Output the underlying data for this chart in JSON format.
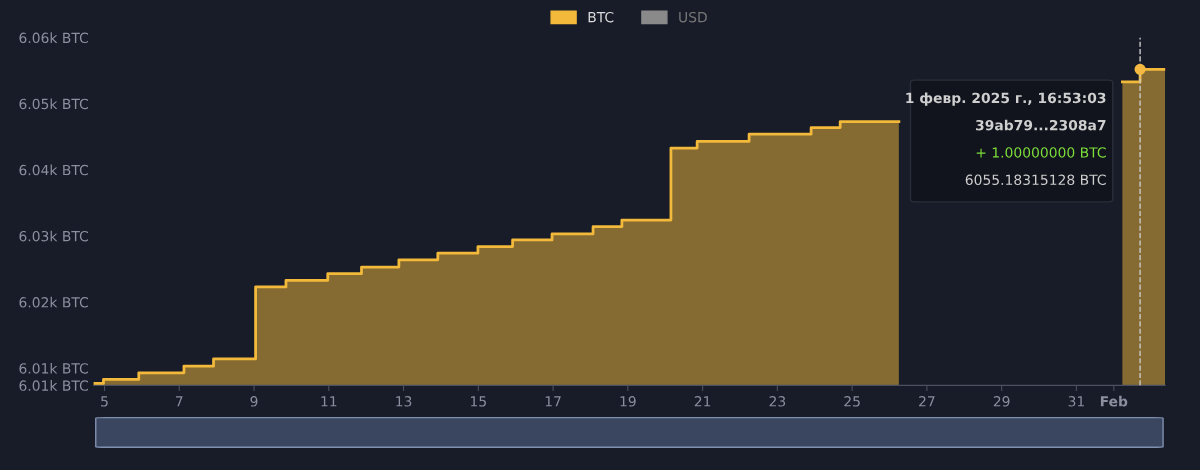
{
  "chart_data": {
    "type": "area",
    "legend": "top",
    "grid": false,
    "line_style": "solid",
    "marker": "none",
    "x": [
      "2025-01-04T17:00",
      "2025-01-04T23:20",
      "2025-01-04T23:20",
      "2025-01-05T22:00",
      "2025-01-05T22:00",
      "2025-01-07T03:00",
      "2025-01-07T03:00",
      "2025-01-07T22:00",
      "2025-01-07T22:00",
      "2025-01-09T01:00",
      "2025-01-09T01:00",
      "2025-01-09T20:30",
      "2025-01-09T20:30",
      "2025-01-10T23:20",
      "2025-01-10T23:20",
      "2025-01-11T21:00",
      "2025-01-11T21:00",
      "2025-01-12T21:00",
      "2025-01-12T21:00",
      "2025-01-13T22:00",
      "2025-01-13T22:00",
      "2025-01-14T23:45",
      "2025-01-14T23:45",
      "2025-01-15T22:00",
      "2025-01-15T22:00",
      "2025-01-16T23:20",
      "2025-01-16T23:20",
      "2025-01-18T01:40",
      "2025-01-18T01:40",
      "2025-01-18T20:10",
      "2025-01-18T20:10",
      "2025-01-20T03:40",
      "2025-01-20T03:40",
      "2025-01-20T20:30",
      "2025-01-20T20:30",
      "2025-01-22T05:50",
      "2025-01-22T05:50",
      "2025-01-23T21:40",
      "2025-01-23T21:40",
      "2025-01-24T16:20",
      "2025-01-24T16:20",
      "2025-01-26T06:00",
      "2025-01-29T00:00",
      "2025-02-01T05:30",
      "2025-02-01T16:53",
      "2025-02-01T16:53",
      "2025-02-02T09:00"
    ],
    "series": [
      {
        "name": "BTC",
        "color": "#f2b93b",
        "values": [
          6007.7,
          6007.7,
          6008.3,
          6008.3,
          6009.3,
          6009.3,
          6010.3,
          6010.3,
          6011.4,
          6011.4,
          6022.3,
          6022.3,
          6023.3,
          6023.3,
          6024.3,
          6024.3,
          6025.3,
          6025.3,
          6026.4,
          6026.4,
          6027.4,
          6027.4,
          6028.4,
          6028.4,
          6029.4,
          6029.4,
          6030.3,
          6030.3,
          6031.4,
          6031.4,
          6032.4,
          6032.4,
          6043.3,
          6043.3,
          6044.3,
          6044.3,
          6045.4,
          6045.4,
          6046.4,
          6046.4,
          6047.3,
          6047.3,
          null,
          6053.3,
          6053.3,
          6055.2,
          6055.2
        ]
      },
      {
        "name": "USD",
        "color": "#8a8a8a",
        "values": [
          null,
          null,
          null,
          null,
          null,
          null,
          null,
          null,
          null,
          null,
          null,
          null,
          null,
          null,
          null,
          null,
          null,
          null,
          null,
          null,
          null,
          null,
          null,
          null,
          null,
          null,
          null,
          null,
          null,
          null,
          null,
          null,
          null,
          null,
          null,
          null,
          null,
          null,
          null,
          null,
          null,
          null,
          null,
          null,
          null,
          null,
          null
        ]
      },
      {
        "type": "scatter",
        "marker": "circle",
        "color": "#f5b942",
        "x": [
          "2025-02-01T16:53"
        ],
        "values": [
          6055.2
        ]
      }
    ],
    "xlim": [
      "2025-01-04T17:00",
      "2025-02-02T09:00"
    ],
    "xticks": [
      {
        "value": "2025-01-05",
        "label": "5"
      },
      {
        "value": "2025-01-07",
        "label": "7"
      },
      {
        "value": "2025-01-09",
        "label": "9"
      },
      {
        "value": "2025-01-11",
        "label": "11"
      },
      {
        "value": "2025-01-13",
        "label": "13"
      },
      {
        "value": "2025-01-15",
        "label": "15"
      },
      {
        "value": "2025-01-17",
        "label": "17"
      },
      {
        "value": "2025-01-19",
        "label": "19"
      },
      {
        "value": "2025-01-21",
        "label": "21"
      },
      {
        "value": "2025-01-23",
        "label": "23"
      },
      {
        "value": "2025-01-25",
        "label": "25"
      },
      {
        "value": "2025-01-27",
        "label": "27"
      },
      {
        "value": "2025-01-29",
        "label": "29"
      },
      {
        "value": "2025-01-31",
        "label": "31"
      },
      {
        "value": "2025-02-01",
        "label": "Feb"
      }
    ],
    "ylim": [
      6007.4,
      6060
    ],
    "yticks": [
      {
        "value": 6007.4,
        "label": "6.01k BTC"
      },
      {
        "value": 6010,
        "label": "6.01k BTC"
      },
      {
        "value": 6020,
        "label": "6.02k BTC"
      },
      {
        "value": 6030,
        "label": "6.03k BTC"
      },
      {
        "value": 6040,
        "label": "6.04k BTC"
      },
      {
        "value": 6050,
        "label": "6.05k BTC"
      },
      {
        "value": 6060,
        "label": "6.06k BTC"
      }
    ],
    "ref_lines": [
      {
        "axis": "x",
        "value": "2025-02-01T16:53",
        "label": null,
        "color": "#cccccc",
        "line_style": "dashed"
      }
    ],
    "annotations": [
      "1 февр. 2025 г., 16:53:03",
      "39ab79...2308a7",
      "+ 1.00000000 BTC",
      "6055.18315128 BTC"
    ]
  }
}
